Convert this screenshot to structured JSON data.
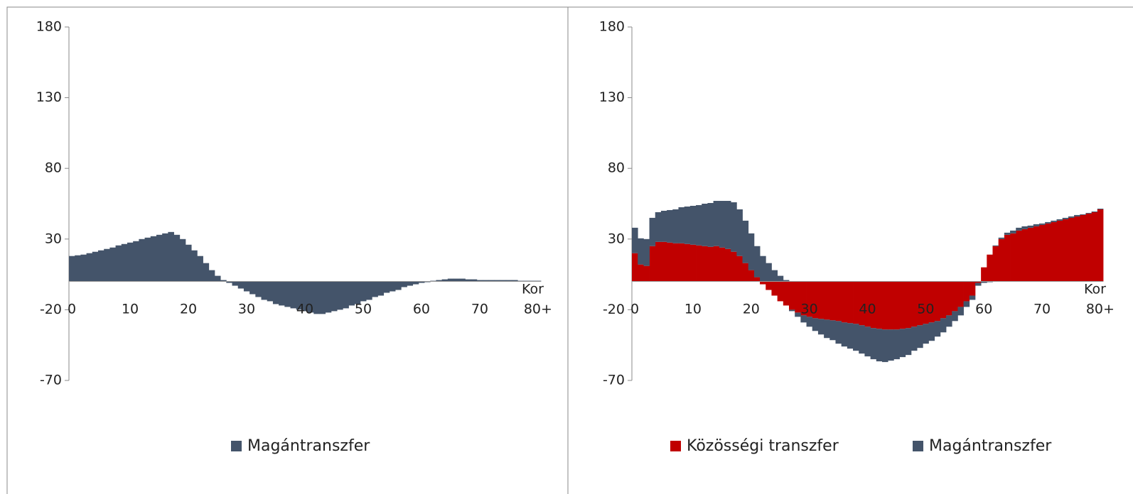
{
  "chart_data": [
    {
      "type": "bar",
      "x_label": "Kor",
      "ylim": [
        -70,
        180
      ],
      "yticks": [
        180,
        130,
        80,
        30,
        -20,
        -70
      ],
      "categories": [
        "0",
        null,
        null,
        null,
        null,
        null,
        null,
        null,
        null,
        null,
        "10",
        null,
        null,
        null,
        null,
        null,
        null,
        null,
        null,
        null,
        "20",
        null,
        null,
        null,
        null,
        null,
        null,
        null,
        null,
        null,
        "30",
        null,
        null,
        null,
        null,
        null,
        null,
        null,
        null,
        null,
        "40",
        null,
        null,
        null,
        null,
        null,
        null,
        null,
        null,
        null,
        "50",
        null,
        null,
        null,
        null,
        null,
        null,
        null,
        null,
        null,
        "60",
        null,
        null,
        null,
        null,
        null,
        null,
        null,
        null,
        null,
        "70",
        null,
        null,
        null,
        null,
        null,
        null,
        null,
        null,
        null,
        "80+"
      ],
      "series": [
        {
          "name": "Magántranszfer",
          "color": "#44546a",
          "values": [
            18,
            18.5,
            19,
            20,
            21,
            22,
            23,
            24,
            25.5,
            26.5,
            27.5,
            28.5,
            30,
            31,
            32,
            33,
            34,
            35,
            33,
            30,
            26,
            22,
            18,
            13,
            8,
            4,
            1,
            -1,
            -3,
            -5,
            -7,
            -9,
            -11,
            -13,
            -14,
            -16,
            -17,
            -18,
            -19,
            -20,
            -21,
            -22,
            -23,
            -23,
            -22,
            -21,
            -20,
            -19,
            -17,
            -16,
            -14,
            -13,
            -11,
            -10,
            -8,
            -7,
            -6,
            -4,
            -3,
            -2,
            -1,
            -0.5,
            0.5,
            1,
            1.5,
            2,
            2,
            2,
            1.5,
            1.5,
            1,
            1,
            1,
            1,
            1,
            1,
            1,
            0.5,
            0.5,
            0.5,
            0.5
          ]
        }
      ]
    },
    {
      "type": "bar",
      "stacked": true,
      "x_label": "Kor",
      "ylim": [
        -70,
        180
      ],
      "yticks": [
        180,
        130,
        80,
        30,
        -20,
        -70
      ],
      "categories": [
        "0",
        null,
        null,
        null,
        null,
        null,
        null,
        null,
        null,
        null,
        "10",
        null,
        null,
        null,
        null,
        null,
        null,
        null,
        null,
        null,
        "20",
        null,
        null,
        null,
        null,
        null,
        null,
        null,
        null,
        null,
        "30",
        null,
        null,
        null,
        null,
        null,
        null,
        null,
        null,
        null,
        "40",
        null,
        null,
        null,
        null,
        null,
        null,
        null,
        null,
        null,
        "50",
        null,
        null,
        null,
        null,
        null,
        null,
        null,
        null,
        null,
        "60",
        null,
        null,
        null,
        null,
        null,
        null,
        null,
        null,
        null,
        "70",
        null,
        null,
        null,
        null,
        null,
        null,
        null,
        null,
        null,
        "80+"
      ],
      "series": [
        {
          "name": "Közösségi transzfer",
          "color": "#c00000",
          "values": [
            20,
            12,
            11,
            25,
            28,
            28,
            27.5,
            27,
            27,
            26.5,
            26,
            25.5,
            25,
            24.5,
            25,
            24,
            23,
            21,
            18,
            13,
            8,
            3,
            -2,
            -6,
            -10,
            -14,
            -17,
            -20,
            -22,
            -24,
            -25,
            -26,
            -26.5,
            -27,
            -27.5,
            -28,
            -29,
            -29.5,
            -30,
            -31,
            -32,
            -33,
            -33.5,
            -34,
            -34,
            -34,
            -33.5,
            -33,
            -32,
            -31,
            -30,
            -29,
            -28,
            -26,
            -24,
            -21,
            -18,
            -14,
            -10,
            -1,
            10,
            19,
            25,
            30,
            33,
            34,
            36,
            37,
            38,
            39,
            40,
            41,
            42,
            43,
            44,
            45,
            46,
            47,
            48,
            49,
            51
          ]
        },
        {
          "name": "Magántranszfer",
          "color": "#44546a",
          "values": [
            18,
            18.5,
            19,
            20,
            21,
            22,
            23,
            24,
            25.5,
            26.5,
            27.5,
            28.5,
            30,
            31,
            32,
            33,
            34,
            35,
            33,
            30,
            26,
            22,
            18,
            13,
            8,
            4,
            1,
            -1,
            -3,
            -5,
            -7,
            -9,
            -11,
            -13,
            -14,
            -16,
            -17,
            -18,
            -19,
            -20,
            -21,
            -22,
            -23,
            -23,
            -22,
            -21,
            -20,
            -19,
            -17,
            -16,
            -14,
            -13,
            -11,
            -10,
            -8,
            -7,
            -6,
            -4,
            -3,
            -2,
            -1,
            -0.5,
            0.5,
            1,
            1.5,
            2,
            2,
            2,
            1.5,
            1.5,
            1,
            1,
            1,
            1,
            1,
            1,
            1,
            0.5,
            0.5,
            0.5,
            0.5
          ]
        }
      ]
    }
  ]
}
